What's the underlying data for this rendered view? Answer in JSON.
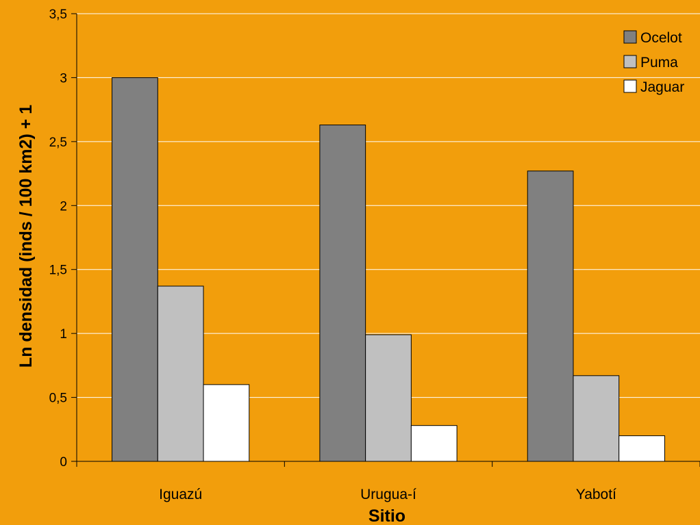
{
  "chart_data": {
    "type": "bar",
    "title": "",
    "xlabel": "Sitio",
    "ylabel": "Ln densidad (inds / 100 km2) + 1",
    "categories": [
      "Iguazú",
      "Urugua-í",
      "Yabotí"
    ],
    "series": [
      {
        "name": "Ocelot",
        "values": [
          3.0,
          2.63,
          2.27
        ],
        "color": "#808080"
      },
      {
        "name": "Puma",
        "values": [
          1.37,
          0.99,
          0.67
        ],
        "color": "#C0C0C0"
      },
      {
        "name": "Jaguar",
        "values": [
          0.6,
          0.28,
          0.2
        ],
        "color": "#FFFFFF"
      }
    ],
    "ylim": [
      0,
      3.5
    ],
    "yticks": [
      "0",
      "0,5",
      "1",
      "1,5",
      "2",
      "2,5",
      "3",
      "3,5"
    ],
    "grid": true,
    "legend_position": "top-right"
  },
  "colors": {
    "background": "#F29E0C",
    "gridline": "#FFFFFF",
    "axis": "#000000"
  }
}
